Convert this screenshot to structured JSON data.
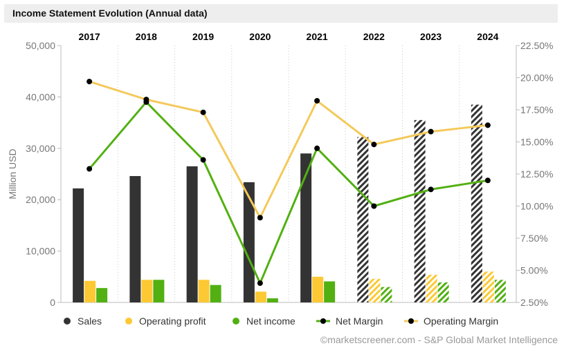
{
  "title": "Income Statement Evolution (Annual data)",
  "credit": "©marketscreener.com - S&P Global Market Intelligence",
  "colors": {
    "sales": "#333333",
    "operating_profit": "#fcc934",
    "net_income": "#52b012",
    "net_margin_line": "#52b012",
    "operating_margin_line": "#f4c95a",
    "marker": "#000000"
  },
  "chart_data": {
    "type": "bar",
    "categories": [
      "2017",
      "2018",
      "2019",
      "2020",
      "2021",
      "2022",
      "2023",
      "2024"
    ],
    "forecast_from_index": 5,
    "ylabel_left": "Million USD",
    "ylim_left": [
      0,
      50000
    ],
    "yticks_left": [
      "0",
      "10,000",
      "20,000",
      "30,000",
      "40,000",
      "50,000"
    ],
    "ylim_right": [
      2.5,
      22.5
    ],
    "yticks_right": [
      "2.50%",
      "5.00%",
      "7.50%",
      "10.00%",
      "12.50%",
      "15.00%",
      "17.50%",
      "20.00%",
      "22.50%"
    ],
    "grid": "vertical dotted",
    "legend_position": "bottom",
    "series": [
      {
        "name": "Sales",
        "axis": "left",
        "kind": "bar",
        "values": [
          22200,
          24600,
          26500,
          23400,
          29000,
          32200,
          35500,
          38500
        ]
      },
      {
        "name": "Operating profit",
        "axis": "left",
        "kind": "bar",
        "values": [
          4200,
          4400,
          4400,
          2100,
          5000,
          4600,
          5400,
          6000
        ]
      },
      {
        "name": "Net income",
        "axis": "left",
        "kind": "bar",
        "values": [
          2800,
          4400,
          3400,
          800,
          4100,
          3000,
          3900,
          4400
        ]
      },
      {
        "name": "Net Margin",
        "axis": "right",
        "kind": "line",
        "values": [
          12.9,
          18.1,
          13.6,
          4.0,
          14.5,
          10.0,
          11.3,
          12.0
        ]
      },
      {
        "name": "Operating Margin",
        "axis": "right",
        "kind": "line",
        "values": [
          19.7,
          18.3,
          17.3,
          9.1,
          18.2,
          14.8,
          15.8,
          16.3
        ]
      }
    ]
  }
}
